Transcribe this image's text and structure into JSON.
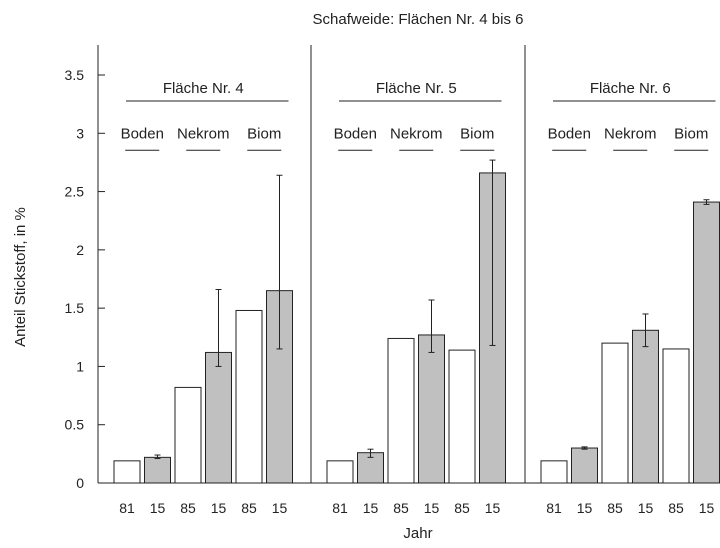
{
  "chart_data": {
    "type": "bar",
    "title": "Schafweide: Flächen Nr. 4 bis 6",
    "xlabel": "Jahr",
    "ylabel": "Anteil Stickstoff, in %",
    "ylim": [
      0,
      3.5
    ],
    "yticks": [
      "0",
      "0.5",
      "1",
      "1.5",
      "2",
      "2.5",
      "3",
      "3.5"
    ],
    "grid": false,
    "bar_colors": {
      "white": "#ffffff",
      "gray": "#c0c0c0",
      "stroke": "#222222"
    },
    "panels": [
      {
        "name": "Fläche Nr. 4",
        "groups": [
          "Boden",
          "Nekrom",
          "Biom"
        ],
        "categories": [
          "81",
          "15",
          "85",
          "15",
          "85",
          "15"
        ],
        "values": [
          0.19,
          0.22,
          0.82,
          1.12,
          1.48,
          1.65
        ],
        "err_low": [
          null,
          0.21,
          null,
          1.0,
          null,
          1.15
        ],
        "err_high": [
          null,
          0.24,
          null,
          1.66,
          null,
          2.64
        ],
        "fill": [
          "white",
          "gray",
          "white",
          "gray",
          "white",
          "gray"
        ]
      },
      {
        "name": "Fläche Nr. 5",
        "groups": [
          "Boden",
          "Nekrom",
          "Biom"
        ],
        "categories": [
          "81",
          "15",
          "85",
          "15",
          "85",
          "15"
        ],
        "values": [
          0.19,
          0.26,
          1.24,
          1.27,
          1.14,
          2.66
        ],
        "err_low": [
          null,
          0.22,
          null,
          1.12,
          null,
          1.18
        ],
        "err_high": [
          null,
          0.29,
          null,
          1.57,
          null,
          2.77
        ],
        "fill": [
          "white",
          "gray",
          "white",
          "gray",
          "white",
          "gray"
        ]
      },
      {
        "name": "Fläche Nr. 6",
        "groups": [
          "Boden",
          "Nekrom",
          "Biom"
        ],
        "categories": [
          "81",
          "15",
          "85",
          "15",
          "85",
          "15"
        ],
        "values": [
          0.19,
          0.3,
          1.2,
          1.31,
          1.15,
          2.41
        ],
        "err_low": [
          null,
          0.29,
          null,
          1.17,
          null,
          2.39
        ],
        "err_high": [
          null,
          0.31,
          null,
          1.45,
          null,
          2.43
        ],
        "fill": [
          "white",
          "gray",
          "white",
          "gray",
          "white",
          "gray"
        ]
      }
    ]
  }
}
